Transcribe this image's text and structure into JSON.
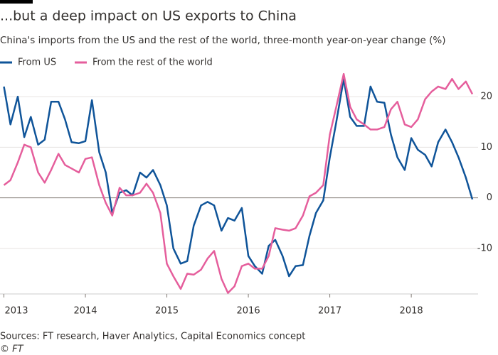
{
  "chart_data": {
    "type": "line",
    "title": "...but a deep impact on US exports to China",
    "subtitle": "China's imports from the US and the rest of the world, three-month year-on-year change (%)",
    "source": "Sources: FT research, Haver Analytics, Capital Economics concept",
    "credit": "© FT",
    "x": [
      2013.0,
      2013.08,
      2013.17,
      2013.25,
      2013.33,
      2013.42,
      2013.5,
      2013.58,
      2013.67,
      2013.75,
      2013.83,
      2013.92,
      2014.0,
      2014.08,
      2014.17,
      2014.25,
      2014.33,
      2014.42,
      2014.5,
      2014.58,
      2014.67,
      2014.75,
      2014.83,
      2014.92,
      2015.0,
      2015.08,
      2015.17,
      2015.25,
      2015.33,
      2015.42,
      2015.5,
      2015.58,
      2015.67,
      2015.75,
      2015.83,
      2015.92,
      2016.0,
      2016.08,
      2016.17,
      2016.25,
      2016.33,
      2016.42,
      2016.5,
      2016.58,
      2016.67,
      2016.75,
      2016.83,
      2016.92,
      2017.0,
      2017.08,
      2017.17,
      2017.25,
      2017.33,
      2017.42,
      2017.5,
      2017.58,
      2017.67,
      2017.75,
      2017.83,
      2017.92,
      2018.0,
      2018.08,
      2018.17,
      2018.25,
      2018.33,
      2018.42,
      2018.5,
      2018.58,
      2018.67,
      2018.75
    ],
    "series": [
      {
        "name": "From US",
        "color": "#0f5499",
        "values": [
          22,
          14.5,
          20,
          12,
          16,
          10.5,
          11.5,
          19,
          19,
          15.5,
          11,
          10.8,
          11.2,
          19.3,
          9,
          5,
          -3,
          1,
          1.5,
          0.5,
          5,
          4,
          5.5,
          2.5,
          -1.5,
          -10,
          -13,
          -12.5,
          -5.5,
          -1.5,
          -0.8,
          -1.5,
          -6.5,
          -4,
          -4.5,
          -2,
          -11.5,
          -13.5,
          -15,
          -9.5,
          -8.3,
          -11.5,
          -15.5,
          -13.5,
          -13.3,
          -7.5,
          -3,
          -0.5,
          8,
          15,
          23.5,
          16,
          14.2,
          14.2,
          22,
          19,
          18.8,
          12.5,
          8,
          5.5,
          11.8,
          9.5,
          8.5,
          6.2,
          11,
          13.5,
          11,
          8,
          4,
          -0.3
        ]
      },
      {
        "name": "From the rest of the world",
        "color": "#e55e9c",
        "values": [
          2.5,
          3.5,
          7,
          10.5,
          10,
          5,
          3,
          5.5,
          8.7,
          6.5,
          5.8,
          5,
          7.7,
          8,
          2.5,
          -1,
          -3.5,
          2,
          0.5,
          0.5,
          1,
          2.8,
          1,
          -3,
          -13,
          -15.5,
          -18,
          -15,
          -15.2,
          -14.2,
          -12,
          -10.5,
          -16,
          -18.8,
          -17.5,
          -13.5,
          -13,
          -14,
          -14,
          -11.5,
          -6,
          -6.3,
          -6.5,
          -6,
          -3.5,
          0.3,
          1,
          2.5,
          12.5,
          18,
          24.5,
          18,
          15.5,
          14.5,
          13.5,
          13.5,
          14,
          17.5,
          19,
          14.5,
          14,
          15.5,
          19.5,
          21,
          22,
          21.5,
          23.5,
          21.5,
          23,
          20.5
        ]
      }
    ],
    "xlim": [
      2013,
      2018.75
    ],
    "xticks": [
      2013,
      2014,
      2015,
      2016,
      2017,
      2018
    ],
    "ylim": [
      -19,
      25
    ],
    "yticks": [
      -10,
      0,
      10,
      20
    ],
    "grid": true
  }
}
